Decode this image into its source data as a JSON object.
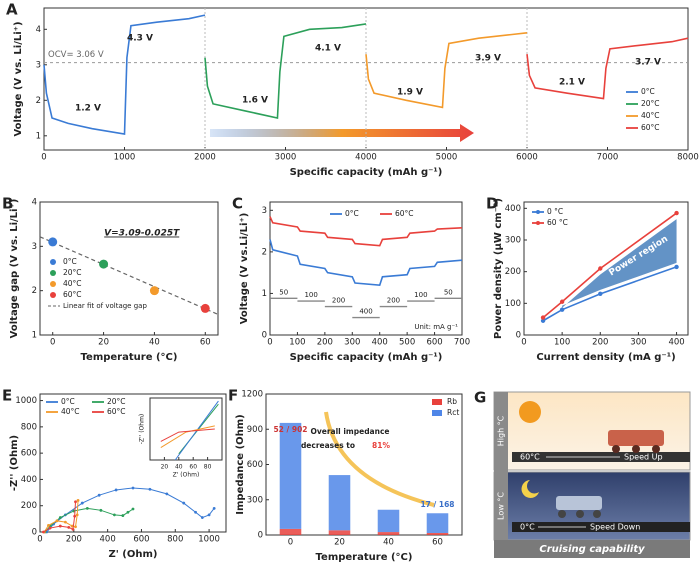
{
  "chart_data": [
    {
      "type": "line",
      "panel_label": "A",
      "x_label": "Specific capacity (mAh g⁻¹)",
      "y_label": "Voltage (V vs. Li/Li⁺)",
      "xlim": [
        0,
        8000
      ],
      "xticks": [
        0,
        1000,
        2000,
        3000,
        4000,
        5000,
        6000,
        7000,
        8000
      ],
      "ylim": [
        0.6,
        4.6
      ],
      "yticks": [
        1,
        2,
        3,
        4
      ],
      "reference_line": 3.06,
      "reference_label": "OCV= 3.06 V",
      "annotations": [
        "1.2 V",
        "4.3 V",
        "1.6 V",
        "4.1 V",
        "1.9 V",
        "3.9 V",
        "2.1 V",
        "3.7 V"
      ],
      "legend": "right",
      "series": [
        {
          "name": "0°C",
          "color": "#3a7bd5",
          "x": [
            0,
            30,
            100,
            300,
            600,
            1000,
            1030,
            1080,
            1400,
            1800,
            2000
          ],
          "values": [
            3.0,
            2.2,
            1.5,
            1.35,
            1.2,
            1.05,
            3.2,
            4.1,
            4.2,
            4.3,
            4.4
          ]
        },
        {
          "name": "20°C",
          "color": "#2ca05a",
          "x": [
            2000,
            2030,
            2100,
            2500,
            2900,
            2930,
            2980,
            3300,
            3700,
            4000
          ],
          "values": [
            3.2,
            2.4,
            1.9,
            1.7,
            1.5,
            2.8,
            3.8,
            4.0,
            4.05,
            4.15
          ]
        },
        {
          "name": "40°C",
          "color": "#f39a2b",
          "x": [
            4000,
            4030,
            4100,
            4500,
            4950,
            4980,
            5030,
            5400,
            5800,
            6000
          ],
          "values": [
            3.3,
            2.6,
            2.2,
            2.0,
            1.8,
            2.9,
            3.6,
            3.75,
            3.85,
            3.9
          ]
        },
        {
          "name": "60°C",
          "color": "#e8413c",
          "x": [
            6000,
            6030,
            6100,
            6500,
            6950,
            6980,
            7030,
            7400,
            7800,
            8000
          ],
          "values": [
            3.3,
            2.7,
            2.35,
            2.2,
            2.05,
            2.9,
            3.45,
            3.55,
            3.65,
            3.75
          ]
        }
      ]
    },
    {
      "type": "scatter",
      "panel_label": "B",
      "x_label": "Temperature (°C)",
      "y_label": "Voltage gap (V vs. Li/Li⁺)",
      "xlim": [
        -5,
        65
      ],
      "xticks": [
        0,
        20,
        40,
        60
      ],
      "ylim": [
        1,
        4
      ],
      "yticks": [
        1,
        2,
        3,
        4
      ],
      "legend": "lower left",
      "fit": {
        "name": "Linear fit of voltage gap",
        "label": "V=3.09-0.025T",
        "intercept": 3.09,
        "slope": -0.025
      },
      "series": [
        {
          "name": "0°C",
          "color": "#3a7bd5",
          "x": [
            0
          ],
          "values": [
            3.1
          ]
        },
        {
          "name": "20°C",
          "color": "#2ca05a",
          "x": [
            20
          ],
          "values": [
            2.6
          ]
        },
        {
          "name": "40°C",
          "color": "#f39a2b",
          "x": [
            40
          ],
          "values": [
            2.0
          ]
        },
        {
          "name": "60°C",
          "color": "#e8413c",
          "x": [
            60
          ],
          "values": [
            1.6
          ]
        }
      ]
    },
    {
      "type": "line",
      "panel_label": "C",
      "x_label": "Specific capacity (mAh g⁻¹)",
      "y_label": "Voltage (V vs.Li/Li⁺)",
      "xlim": [
        0,
        700
      ],
      "xticks": [
        0,
        100,
        200,
        300,
        400,
        500,
        600,
        700
      ],
      "ylim": [
        0,
        3.2
      ],
      "yticks": [
        0,
        1,
        2,
        3
      ],
      "legend": "top",
      "current_steps": {
        "values": [
          50,
          100,
          200,
          400,
          200,
          100,
          50
        ],
        "label": "Unit: mA g⁻¹"
      },
      "series": [
        {
          "name": "0°C",
          "color": "#3a7bd5",
          "x": [
            0,
            10,
            100,
            110,
            200,
            210,
            300,
            310,
            400,
            410,
            500,
            510,
            600,
            610,
            700
          ],
          "values": [
            2.3,
            2.05,
            1.9,
            1.7,
            1.6,
            1.5,
            1.4,
            1.25,
            1.2,
            1.4,
            1.45,
            1.6,
            1.65,
            1.75,
            1.8
          ]
        },
        {
          "name": "60°C",
          "color": "#e8413c",
          "x": [
            0,
            10,
            100,
            110,
            200,
            210,
            300,
            310,
            400,
            410,
            500,
            510,
            600,
            610,
            700
          ],
          "values": [
            2.85,
            2.7,
            2.6,
            2.5,
            2.45,
            2.35,
            2.3,
            2.2,
            2.15,
            2.3,
            2.35,
            2.45,
            2.5,
            2.55,
            2.58
          ]
        }
      ]
    },
    {
      "type": "line",
      "panel_label": "D",
      "x_label": "Current density  (mA g⁻¹)",
      "y_label": "Power density (μW cm⁻²)",
      "xlim": [
        0,
        430
      ],
      "xticks": [
        0,
        100,
        200,
        300,
        400
      ],
      "ylim": [
        0,
        420
      ],
      "yticks": [
        0,
        100,
        200,
        300,
        400
      ],
      "legend": "upper left",
      "markers": true,
      "annotations": [
        "Power region"
      ],
      "series": [
        {
          "name": "0 °C",
          "color": "#3a7bd5",
          "x": [
            50,
            100,
            200,
            400
          ],
          "values": [
            45,
            80,
            130,
            215
          ]
        },
        {
          "name": "60 °C",
          "color": "#e8413c",
          "x": [
            50,
            100,
            200,
            400
          ],
          "values": [
            55,
            105,
            210,
            385
          ]
        }
      ]
    },
    {
      "type": "line",
      "panel_label": "E",
      "x_label": "Z' (Ohm)",
      "y_label": "-Z'' (Ohm)",
      "xlim": [
        0,
        1100
      ],
      "xticks": [
        0,
        200,
        400,
        600,
        800,
        1000
      ],
      "ylim": [
        0,
        1050
      ],
      "yticks": [
        0,
        200,
        400,
        600,
        800,
        1000
      ],
      "legend": "upper left",
      "markers": true,
      "series": [
        {
          "name": "0°C",
          "color": "#3a7bd5",
          "x": [
            40,
            80,
            150,
            250,
            350,
            450,
            550,
            650,
            750,
            850,
            920,
            960,
            1000,
            1030
          ],
          "values": [
            0,
            60,
            130,
            220,
            280,
            320,
            335,
            325,
            290,
            220,
            150,
            110,
            130,
            180
          ]
        },
        {
          "name": "20°C",
          "color": "#2ca05a",
          "x": [
            30,
            60,
            120,
            200,
            280,
            360,
            440,
            490,
            520,
            550
          ],
          "values": [
            0,
            45,
            110,
            160,
            180,
            165,
            130,
            125,
            150,
            175
          ]
        },
        {
          "name": "40°C",
          "color": "#f39a2b",
          "x": [
            25,
            50,
            100,
            150,
            190,
            210,
            220,
            225
          ],
          "values": [
            0,
            50,
            85,
            75,
            45,
            40,
            130,
            240
          ]
        },
        {
          "name": "60°C",
          "color": "#e8413c",
          "x": [
            20,
            60,
            120,
            170,
            195,
            205,
            210
          ],
          "values": [
            0,
            30,
            45,
            35,
            20,
            120,
            230
          ]
        }
      ],
      "inset": {
        "x_label": "Z' (Ohm)",
        "y_label": "-Z'' (Ohm)",
        "xlim": [
          0,
          100
        ],
        "xticks": [
          20,
          40,
          60,
          80
        ],
        "ylim": [
          0,
          100
        ],
        "series": [
          {
            "color": "#2ca05a",
            "x": [
              40,
              95
            ],
            "values": [
              10,
              90
            ]
          },
          {
            "color": "#3a7bd5",
            "x": [
              35,
              95
            ],
            "values": [
              0,
              95
            ]
          },
          {
            "color": "#f39a2b",
            "x": [
              15,
              50,
              90
            ],
            "values": [
              20,
              45,
              55
            ]
          },
          {
            "color": "#e8413c",
            "x": [
              15,
              40,
              90
            ],
            "values": [
              30,
              45,
              50
            ]
          }
        ]
      }
    },
    {
      "type": "bar",
      "panel_label": "F",
      "x_label": "Temperature (°C)",
      "y_label": "Impedance (Ohm)",
      "categories": [
        "0",
        "20",
        "40",
        "60"
      ],
      "ylim": [
        0,
        1200
      ],
      "yticks": [
        0,
        300,
        600,
        900,
        1200
      ],
      "stacked": true,
      "legend": "upper right",
      "annotations": [
        "52 / 902",
        "17 / 168",
        "Overall impedance",
        "decreases to",
        "81%"
      ],
      "series": [
        {
          "name": "Rb",
          "color": "#e8413c",
          "values": [
            52,
            40,
            25,
            17
          ]
        },
        {
          "name": "Rct",
          "color": "#4f86e8",
          "values": [
            902,
            470,
            190,
            168
          ]
        }
      ]
    }
  ],
  "illustration": {
    "panel_label": "G",
    "high": "High °C",
    "low": "Low °C",
    "hot_temp": "60°C",
    "hot_speed": "Speed Up",
    "cold_temp": "0°C",
    "cold_speed": "Speed Down",
    "caption": "Cruising capability"
  }
}
